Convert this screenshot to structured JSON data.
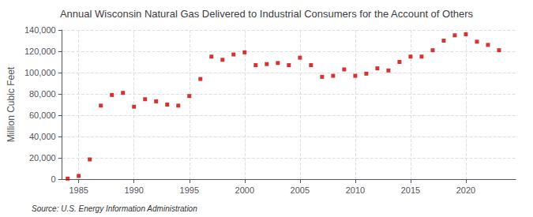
{
  "chart_data": {
    "type": "scatter",
    "title": "Annual Wisconsin Natural Gas Delivered to Industrial Consumers for the Account of Others",
    "ylabel": "Million Cubic Feet",
    "annotation": "Source: U.S. Energy Information Administration",
    "x": [
      1984,
      1985,
      1986,
      1987,
      1988,
      1989,
      1990,
      1991,
      1992,
      1993,
      1994,
      1995,
      1996,
      1997,
      1998,
      1999,
      2000,
      2001,
      2002,
      2003,
      2004,
      2005,
      2006,
      2007,
      2008,
      2009,
      2010,
      2011,
      2012,
      2013,
      2014,
      2015,
      2016,
      2017,
      2018,
      2019,
      2020,
      2021,
      2022,
      2023
    ],
    "values": [
      500,
      3000,
      18500,
      69000,
      79000,
      81000,
      68000,
      75000,
      73000,
      70000,
      69000,
      78000,
      94000,
      115000,
      112000,
      117000,
      119000,
      107000,
      108000,
      109000,
      107000,
      114000,
      107000,
      96000,
      97000,
      103000,
      97000,
      99000,
      104000,
      102000,
      110000,
      115000,
      115000,
      121000,
      130000,
      135000,
      136000,
      129000,
      126000,
      121000
    ],
    "color": "#cc0000",
    "marker": "square",
    "xlim": [
      1983.5,
      2024.5
    ],
    "xticks": [
      1985,
      1990,
      1995,
      2000,
      2005,
      2010,
      2015,
      2020
    ],
    "ylim": [
      0,
      140000
    ],
    "yticks": [
      0,
      {
        "value": 20000,
        "label": "20,000"
      },
      {
        "value": 40000,
        "label": "40,000"
      },
      {
        "value": 60000,
        "label": "60,000"
      },
      {
        "value": 80000,
        "label": "80,000"
      },
      {
        "value": 100000,
        "label": "100,000"
      },
      {
        "value": 120000,
        "label": "120,000"
      },
      {
        "value": 140000,
        "label": "140,000"
      }
    ],
    "grid": true
  }
}
